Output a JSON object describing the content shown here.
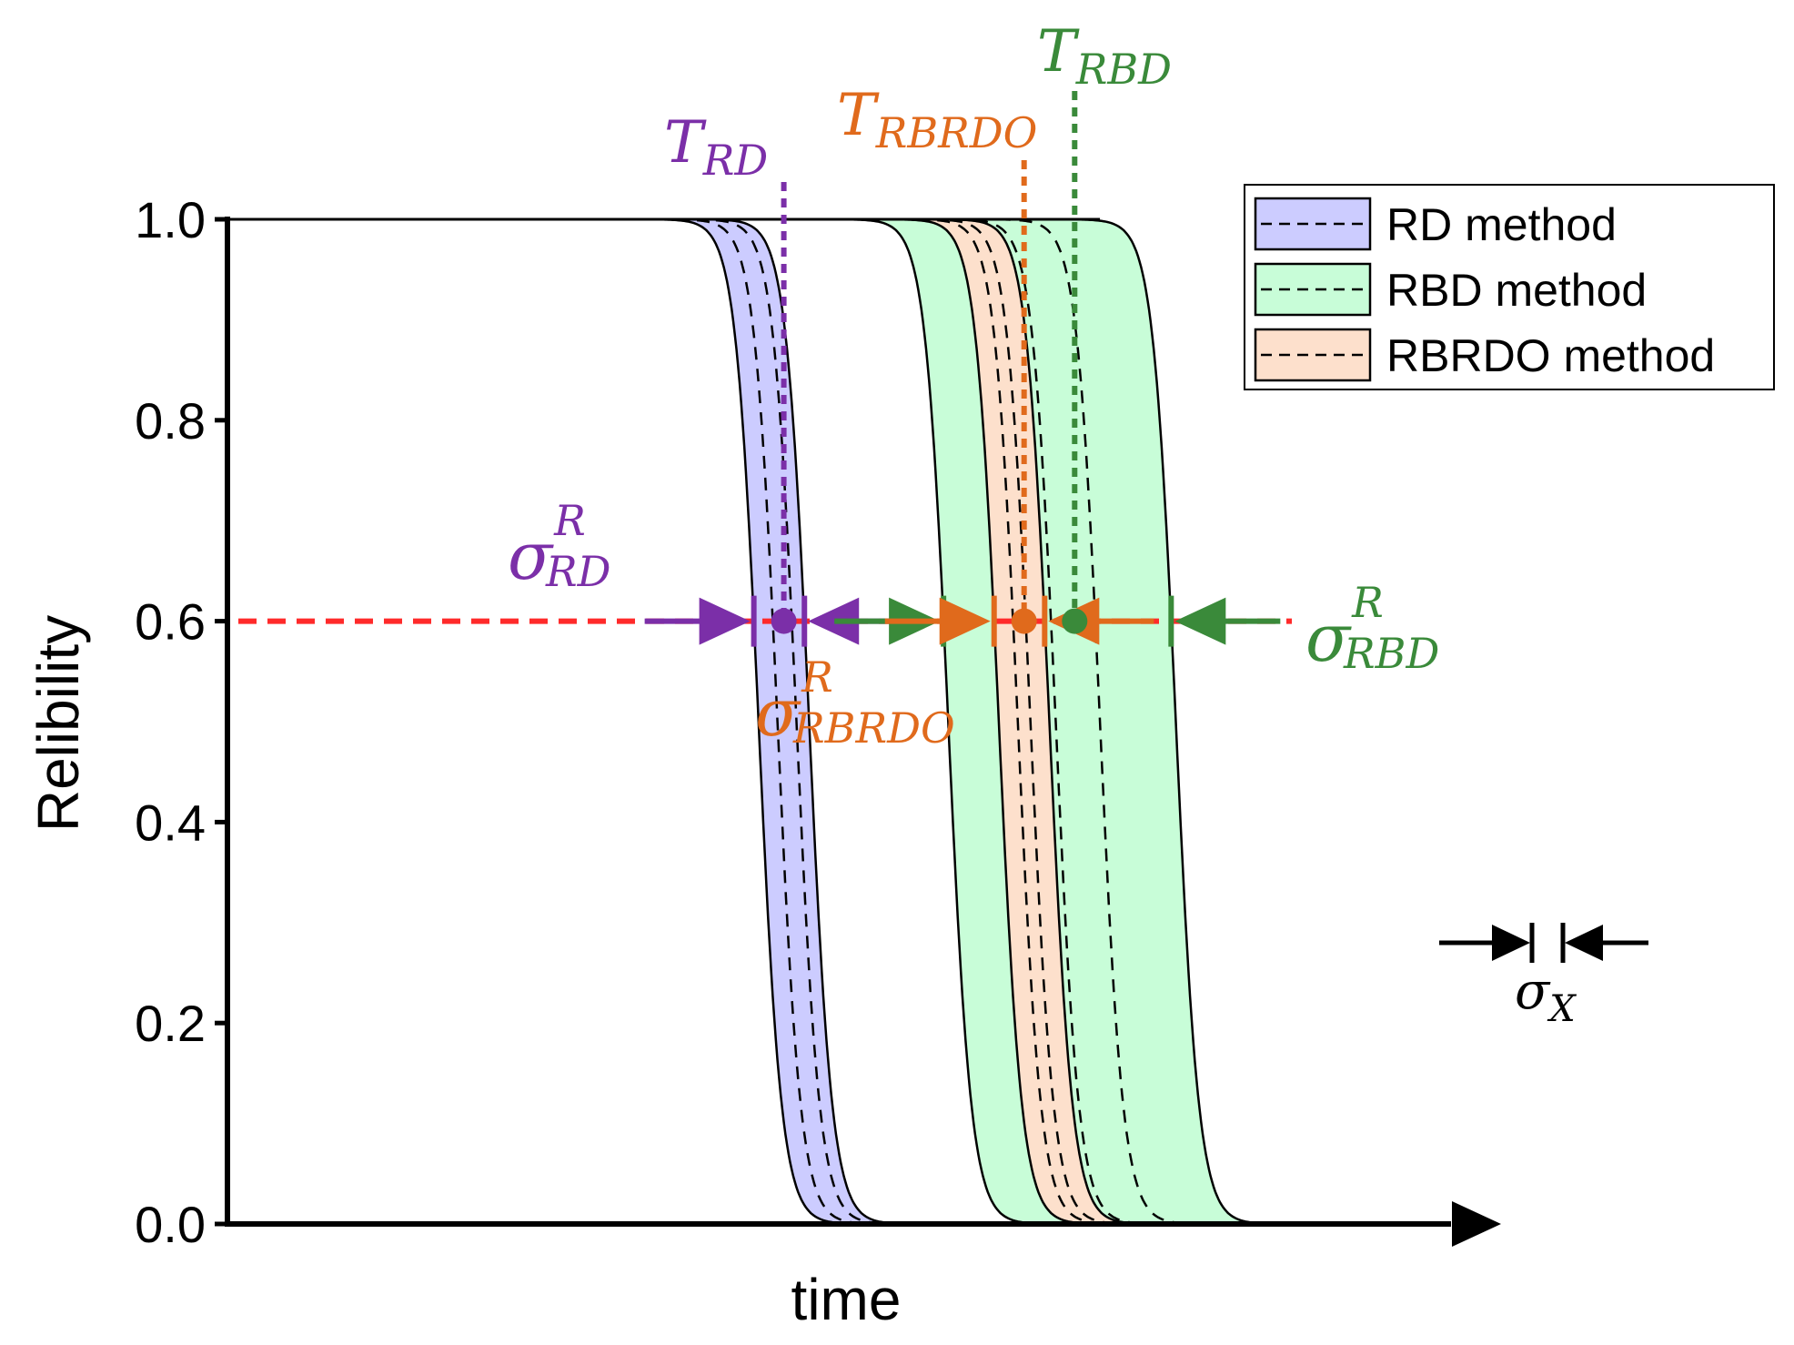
{
  "chart_data": {
    "type": "line",
    "title": "",
    "xlabel": "time",
    "ylabel": "Relibility",
    "xlim": [
      0,
      10
    ],
    "ylim": [
      0,
      1
    ],
    "yticks": [
      "0.0",
      "0.2",
      "0.4",
      "0.6",
      "0.8",
      "1.0"
    ],
    "ytick_values": [
      0,
      0.2,
      0.4,
      0.6,
      0.8,
      1.0
    ],
    "reliability_level": 0.6,
    "series": [
      {
        "name": "RD method",
        "fill": "#ccccff",
        "lower_shift": 4.2,
        "upper_shift": 4.6,
        "dashed_shifts": [
          4.35,
          4.5
        ],
        "width": 0.55
      },
      {
        "name": "RBD method",
        "fill": "#c8fdd8",
        "lower_shift": 5.7,
        "upper_shift": 7.5,
        "dashed_shifts": [
          6.55,
          6.9
        ],
        "width": 0.55
      },
      {
        "name": "RBRDO method",
        "fill": "#fde0cc",
        "lower_shift": 6.1,
        "upper_shift": 6.5,
        "dashed_shifts": [
          6.25,
          6.35
        ],
        "width": 0.55
      }
    ],
    "annotations": {
      "t_rd": {
        "base": "T",
        "sub": "RD",
        "color": "#7b2fa8",
        "x": 4.4
      },
      "t_rbrdo": {
        "base": "T",
        "sub": "RBRDO",
        "color": "#e06a1c",
        "x": 6.3
      },
      "t_rbd": {
        "base": "T",
        "sub": "RBD",
        "color": "#3a8a3a",
        "x": 6.7
      },
      "sigma_rd": {
        "base": "σ",
        "sup": "R",
        "sub": "RD",
        "color": "#7b2fa8"
      },
      "sigma_rbrdo": {
        "base": "σ",
        "sup": "R",
        "sub": "RBRDO",
        "color": "#e06a1c"
      },
      "sigma_rbd": {
        "base": "σ",
        "sup": "R",
        "sub": "RBD",
        "color": "#3a8a3a"
      },
      "sigma_x": {
        "base": "σ",
        "sub": "X",
        "color": "#000000"
      }
    }
  }
}
